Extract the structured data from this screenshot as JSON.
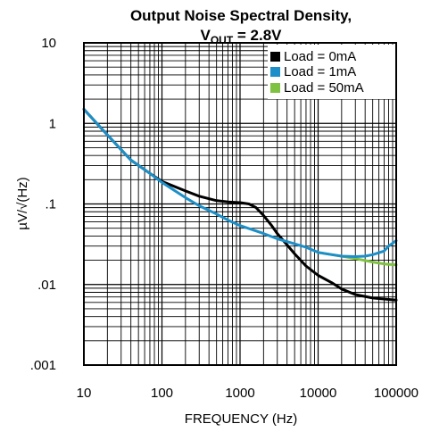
{
  "chart_data": {
    "type": "line",
    "title_line1": "Output Noise Spectral Density,",
    "title_line2_main": "V",
    "title_line2_sub": "OUT",
    "title_line2_rest": " = 2.8V",
    "xlabel": "FREQUENCY (Hz)",
    "ylabel": "µV/√(Hz)",
    "x_scale": "log",
    "y_scale": "log",
    "xlim": [
      10,
      100000
    ],
    "ylim": [
      0.001,
      10
    ],
    "x_ticks": [
      {
        "value": 10,
        "label": "10"
      },
      {
        "value": 100,
        "label": "100"
      },
      {
        "value": 1000,
        "label": "1000"
      },
      {
        "value": 10000,
        "label": "10000"
      },
      {
        "value": 100000,
        "label": "100000"
      }
    ],
    "y_ticks": [
      {
        "value": 0.001,
        "label": ".001"
      },
      {
        "value": 0.01,
        "label": ".01"
      },
      {
        "value": 0.1,
        "label": ".1"
      },
      {
        "value": 1,
        "label": "1"
      },
      {
        "value": 10,
        "label": "10"
      }
    ],
    "grid": true,
    "legend_position": "top-right",
    "series": [
      {
        "name": "Load = 0mA",
        "color": "#000000",
        "points": [
          [
            10,
            1.5
          ],
          [
            20,
            0.72
          ],
          [
            40,
            0.35
          ],
          [
            70,
            0.24
          ],
          [
            100,
            0.19
          ],
          [
            200,
            0.145
          ],
          [
            300,
            0.125
          ],
          [
            500,
            0.11
          ],
          [
            700,
            0.106
          ],
          [
            1000,
            0.104
          ],
          [
            1300,
            0.1
          ],
          [
            1600,
            0.09
          ],
          [
            2000,
            0.072
          ],
          [
            2500,
            0.055
          ],
          [
            3000,
            0.043
          ],
          [
            4000,
            0.031
          ],
          [
            5000,
            0.024
          ],
          [
            7000,
            0.017
          ],
          [
            10000,
            0.013
          ],
          [
            15000,
            0.0105
          ],
          [
            20000,
            0.0088
          ],
          [
            30000,
            0.0075
          ],
          [
            50000,
            0.0068
          ],
          [
            70000,
            0.0066
          ],
          [
            100000,
            0.0064
          ]
        ]
      },
      {
        "name": "Load = 1mA",
        "color": "#1c8fc8",
        "points": [
          [
            10,
            1.5
          ],
          [
            20,
            0.72
          ],
          [
            40,
            0.35
          ],
          [
            70,
            0.24
          ],
          [
            100,
            0.185
          ],
          [
            200,
            0.12
          ],
          [
            300,
            0.095
          ],
          [
            500,
            0.075
          ],
          [
            700,
            0.063
          ],
          [
            1000,
            0.054
          ],
          [
            2000,
            0.043
          ],
          [
            3000,
            0.037
          ],
          [
            5000,
            0.032
          ],
          [
            7000,
            0.029
          ],
          [
            10000,
            0.025
          ],
          [
            15000,
            0.0235
          ],
          [
            20000,
            0.0225
          ],
          [
            30000,
            0.0222
          ],
          [
            40000,
            0.0225
          ],
          [
            50000,
            0.0235
          ],
          [
            70000,
            0.026
          ],
          [
            80000,
            0.03
          ],
          [
            100000,
            0.035
          ]
        ]
      },
      {
        "name": "Load = 50mA",
        "color": "#7fc241",
        "points": [
          [
            10000,
            0.025
          ],
          [
            15000,
            0.0235
          ],
          [
            20000,
            0.0225
          ],
          [
            30000,
            0.021
          ],
          [
            50000,
            0.019
          ],
          [
            70000,
            0.018
          ],
          [
            100000,
            0.0175
          ]
        ]
      }
    ]
  }
}
